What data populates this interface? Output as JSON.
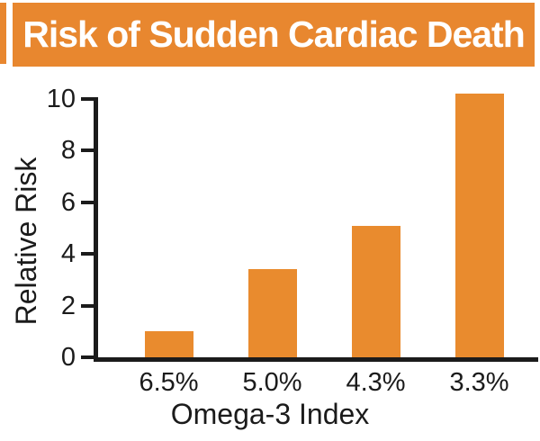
{
  "header": {
    "title": "Risk of Sudden Cardiac Death",
    "bg_color": "#E8872F",
    "text_color": "#FFFFFF"
  },
  "chart_data": {
    "type": "bar",
    "title": "Risk of Sudden Cardiac Death",
    "categories": [
      "6.5%",
      "5.0%",
      "4.3%",
      "3.3%"
    ],
    "values": [
      1.0,
      3.4,
      5.1,
      10.2
    ],
    "xlabel": "Omega-3 Index",
    "ylabel": "Relative Risk",
    "ylim": [
      0,
      10
    ],
    "yticks": [
      0,
      2,
      4,
      6,
      8,
      10
    ],
    "grid": false,
    "legend": "none",
    "bar_color": "#E98B2E",
    "axis_color": "#1B1B1B"
  }
}
